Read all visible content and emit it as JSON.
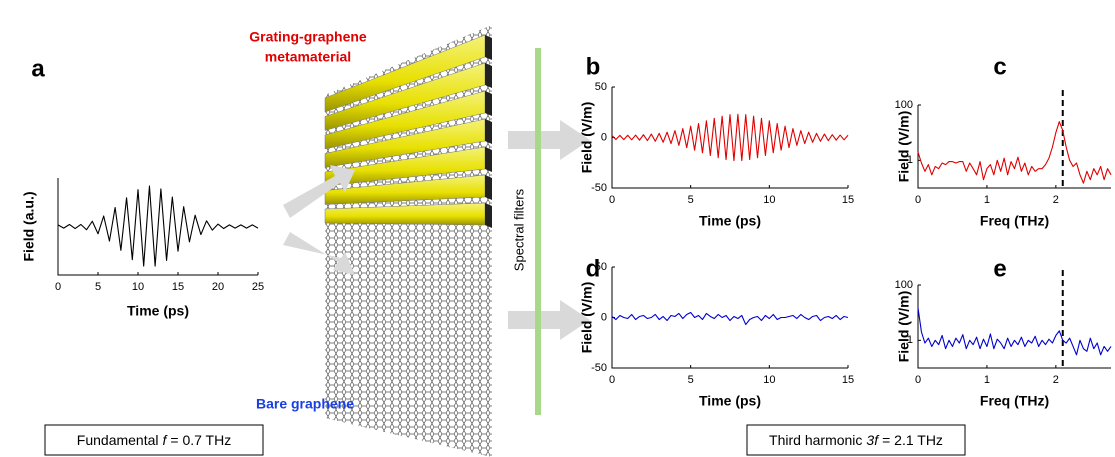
{
  "panel_labels": [
    "a",
    "b",
    "c",
    "d",
    "e"
  ],
  "illustration": {
    "metamaterial_label": [
      "Grating-graphene",
      "metamaterial"
    ],
    "bare_label": "Bare graphene",
    "filter_label": "Spectral filters"
  },
  "captions": [
    {
      "parts": [
        "Fundamental",
        "f",
        "= 0.7 THz"
      ]
    },
    {
      "parts": [
        "Third harmonic",
        "3f",
        "= 2.1 THz"
      ]
    }
  ],
  "chart_data": [
    {
      "type": "line",
      "xlabel": "Time (ps)",
      "ylabel": "Field (a.u.)",
      "color": "#000000",
      "x": [
        0,
        0.71,
        1.43,
        2.14,
        2.86,
        3.57,
        4.29,
        5,
        5.71,
        6.43,
        7.14,
        7.86,
        8.57,
        9.29,
        10,
        10.71,
        11.43,
        12.14,
        12.86,
        13.57,
        14.29,
        15,
        15.71,
        16.43,
        17.14,
        17.86,
        18.57,
        19.29,
        20,
        20.71,
        21.43,
        22.14,
        22.86,
        23.57,
        24.29,
        25
      ],
      "values": [
        0.04,
        -0.04,
        0.05,
        -0.05,
        0.05,
        -0.08,
        0.13,
        -0.18,
        0.26,
        -0.36,
        0.47,
        -0.59,
        0.71,
        -0.82,
        0.91,
        -0.98,
        1,
        -0.98,
        0.93,
        -0.84,
        0.73,
        -0.61,
        0.49,
        -0.38,
        0.28,
        -0.2,
        0.14,
        -0.09,
        0.06,
        -0.05,
        0.04,
        -0.04,
        0.04,
        -0.04,
        0.04,
        -0.04
      ],
      "xlim": [
        0,
        25
      ],
      "xticks": [
        0,
        5,
        10,
        15,
        20,
        25
      ],
      "ylim": [
        -1.2,
        1.2
      ]
    },
    {
      "type": "line",
      "xlabel": "Time (ps)",
      "ylabel": "Field (V/m)",
      "color": "#e00000",
      "x": [
        0,
        0.25,
        0.5,
        0.75,
        1,
        1.25,
        1.5,
        1.75,
        2,
        2.25,
        2.5,
        2.75,
        3,
        3.25,
        3.5,
        3.75,
        4,
        4.25,
        4.5,
        4.75,
        5,
        5.25,
        5.5,
        5.75,
        6,
        6.25,
        6.5,
        6.75,
        7,
        7.25,
        7.5,
        7.75,
        8,
        8.25,
        8.5,
        8.75,
        9,
        9.25,
        9.5,
        9.75,
        10,
        10.25,
        10.5,
        10.75,
        11,
        11.25,
        11.5,
        11.75,
        12,
        12.25,
        12.5,
        12.75,
        13,
        13.25,
        13.5,
        13.75,
        14,
        14.25,
        14.5,
        14.75,
        15
      ],
      "values": [
        2,
        -2,
        2.1,
        -2.1,
        2.2,
        -2.3,
        2.4,
        -2.6,
        2.8,
        -3.1,
        3.4,
        -3.7,
        4.1,
        -4.7,
        5.3,
        -6,
        6.8,
        -7.8,
        8.8,
        -10,
        11.2,
        -12.5,
        13.8,
        -15.1,
        16.5,
        -17.8,
        19,
        -20,
        21.1,
        -21.9,
        22.6,
        -22.9,
        23,
        -22.9,
        22.6,
        -21.9,
        21.1,
        -20,
        19,
        -17.8,
        16.5,
        -15.1,
        13.8,
        -12.5,
        11.2,
        -10,
        8.8,
        -7.8,
        6.8,
        -6,
        5.3,
        -4.7,
        4.1,
        -3.7,
        3.4,
        -3.1,
        2.8,
        -2.6,
        2.4,
        -2.3,
        2.2
      ],
      "xlim": [
        0,
        15
      ],
      "xticks": [
        0,
        5,
        10,
        15
      ],
      "ylim": [
        -50,
        50
      ],
      "yticks": [
        -50,
        0,
        50
      ]
    },
    {
      "type": "line",
      "xlabel": "Freq (THz)",
      "ylabel": "Field (V/m)",
      "color": "#e00000",
      "log_y": true,
      "vline": 2.1,
      "x": [
        0,
        0.05,
        0.1,
        0.15,
        0.2,
        0.25,
        0.3,
        0.35,
        0.4,
        0.45,
        0.5,
        0.55,
        0.6,
        0.65,
        0.7,
        0.75,
        0.8,
        0.85,
        0.9,
        0.95,
        1,
        1.05,
        1.1,
        1.15,
        1.2,
        1.25,
        1.3,
        1.35,
        1.4,
        1.45,
        1.5,
        1.55,
        1.6,
        1.65,
        1.7,
        1.75,
        1.8,
        1.85,
        1.9,
        1.95,
        2,
        2.05,
        2.1,
        2.15,
        2.2,
        2.25,
        2.3,
        2.35,
        2.4,
        2.45,
        2.5,
        2.55,
        2.6,
        2.65,
        2.7,
        2.75,
        2.8
      ],
      "values": [
        2,
        0.8,
        0.4,
        0.7,
        0.3,
        0.6,
        0.5,
        0.8,
        0.7,
        0.9,
        0.9,
        0.8,
        0.9,
        0.9,
        0.4,
        0.8,
        0.5,
        0.3,
        0.9,
        0.2,
        0.5,
        0.7,
        0.3,
        1,
        0.4,
        1.2,
        0.3,
        0.9,
        0.5,
        1.3,
        0.4,
        0.8,
        0.3,
        0.6,
        0.4,
        0.5,
        0.5,
        0.7,
        1.2,
        3,
        10,
        25,
        12,
        3,
        1,
        0.6,
        0.8,
        0.3,
        0.15,
        0.4,
        0.2,
        0.5,
        0.3,
        0.6,
        0.2,
        0.5,
        0.3
      ],
      "xlim": [
        0,
        2.8
      ],
      "xticks": [
        0,
        1,
        2
      ],
      "ylim": [
        0.1,
        100
      ],
      "yticks": [
        1,
        100
      ]
    },
    {
      "type": "line",
      "xlabel": "Time (ps)",
      "ylabel": "Field (V/m)",
      "color": "#0000d0",
      "x": [
        0,
        0.25,
        0.5,
        0.75,
        1,
        1.25,
        1.5,
        1.75,
        2,
        2.25,
        2.5,
        2.75,
        3,
        3.25,
        3.5,
        3.75,
        4,
        4.25,
        4.5,
        4.75,
        5,
        5.25,
        5.5,
        5.75,
        6,
        6.25,
        6.5,
        6.75,
        7,
        7.25,
        7.5,
        7.75,
        8,
        8.25,
        8.5,
        8.75,
        9,
        9.25,
        9.5,
        9.75,
        10,
        10.25,
        10.5,
        10.75,
        11,
        11.25,
        11.5,
        11.75,
        12,
        12.25,
        12.5,
        12.75,
        13,
        13.25,
        13.5,
        13.75,
        14,
        14.25,
        14.5,
        14.75,
        15
      ],
      "values": [
        1,
        -2,
        2,
        0,
        -1,
        3,
        -2,
        1,
        2,
        -1,
        0,
        3,
        -2,
        1,
        -3,
        2,
        1,
        4,
        -1,
        3,
        5,
        0,
        2,
        -2,
        4,
        1,
        -1,
        3,
        0,
        2,
        -3,
        1,
        -1,
        2,
        -7,
        -2,
        0,
        1,
        -3,
        2,
        -1,
        3,
        -2,
        0,
        0,
        1,
        2,
        -1,
        3,
        0,
        -2,
        1,
        2,
        -3,
        0,
        1,
        -1,
        2,
        -2,
        1,
        0
      ],
      "xlim": [
        0,
        15
      ],
      "xticks": [
        0,
        5,
        10,
        15
      ],
      "ylim": [
        -50,
        50
      ],
      "yticks": [
        -50,
        0,
        50
      ]
    },
    {
      "type": "line",
      "xlabel": "Freq (THz)",
      "ylabel": "Field (V/m)",
      "color": "#0000d0",
      "log_y": true,
      "vline": 2.1,
      "x": [
        0,
        0.05,
        0.1,
        0.15,
        0.2,
        0.25,
        0.3,
        0.35,
        0.4,
        0.45,
        0.5,
        0.55,
        0.6,
        0.65,
        0.7,
        0.75,
        0.8,
        0.85,
        0.9,
        0.95,
        1,
        1.05,
        1.1,
        1.15,
        1.2,
        1.25,
        1.3,
        1.35,
        1.4,
        1.45,
        1.5,
        1.55,
        1.6,
        1.65,
        1.7,
        1.75,
        1.8,
        1.85,
        1.9,
        1.95,
        2,
        2.05,
        2.1,
        2.15,
        2.2,
        2.25,
        2.3,
        2.35,
        2.4,
        2.45,
        2.5,
        2.55,
        2.6,
        2.65,
        2.7,
        2.75,
        2.8
      ],
      "values": [
        15,
        2,
        0.8,
        1.2,
        0.6,
        1,
        0.7,
        1.5,
        0.5,
        1,
        0.6,
        1.2,
        0.8,
        1.6,
        0.5,
        1,
        0.7,
        1.3,
        0.5,
        1.1,
        0.6,
        1.7,
        0.5,
        1.1,
        0.8,
        0.5,
        1.2,
        0.6,
        1,
        0.7,
        1.3,
        0.6,
        1,
        0.8,
        1.4,
        0.6,
        1,
        0.7,
        1.1,
        0.8,
        1.5,
        2.2,
        1,
        0.8,
        1.2,
        0.6,
        0.3,
        1,
        0.5,
        0.4,
        1.2,
        0.5,
        0.8,
        0.3,
        0.6,
        0.4,
        0.6
      ],
      "xlim": [
        0,
        2.8
      ],
      "xticks": [
        0,
        1,
        2
      ],
      "ylim": [
        0.1,
        100
      ],
      "yticks": [
        1,
        100
      ]
    }
  ]
}
